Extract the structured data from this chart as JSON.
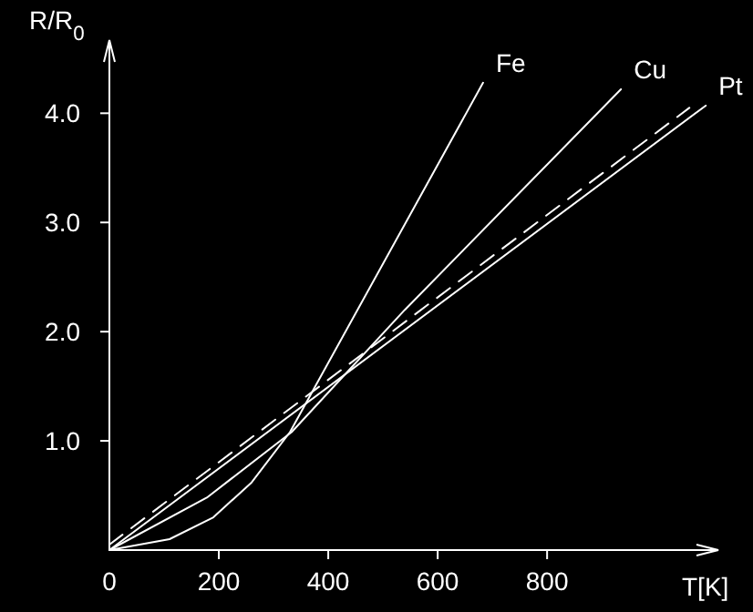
{
  "chart_data": {
    "type": "line",
    "xlabel": "T[K]",
    "ylabel": "R/R$_{0}$",
    "xlim": [
      0,
      1113
    ],
    "ylim": [
      0,
      4.67
    ],
    "xticks": [
      0,
      200,
      400,
      600,
      800
    ],
    "yticks": [
      {
        "value": 1,
        "label": "1.0"
      },
      {
        "value": 2,
        "label": "2.0"
      },
      {
        "value": 3,
        "label": "3.0"
      },
      {
        "value": 4,
        "label": "4.0"
      }
    ],
    "marker": "none",
    "series": [
      {
        "name": "Fe",
        "color": "#ffffff",
        "x": [
          0,
          110,
          190,
          260,
          330,
          683
        ],
        "values": [
          0,
          0.1,
          0.3,
          0.62,
          1.08,
          4.28
        ]
      },
      {
        "name": "Cu",
        "color": "#ffffff",
        "x": [
          0,
          178,
          333,
          540,
          935
        ],
        "values": [
          0,
          0.48,
          1.08,
          2.2,
          4.22
        ]
      },
      {
        "name": "Pt",
        "color": "#ffffff",
        "x": [
          0,
          1090
        ],
        "values": [
          0,
          4.07
        ]
      },
      {
        "color": "#ffffff",
        "line_style": "dashed",
        "x": [
          0,
          1060
        ],
        "values": [
          0.05,
          4.05
        ]
      }
    ]
  }
}
